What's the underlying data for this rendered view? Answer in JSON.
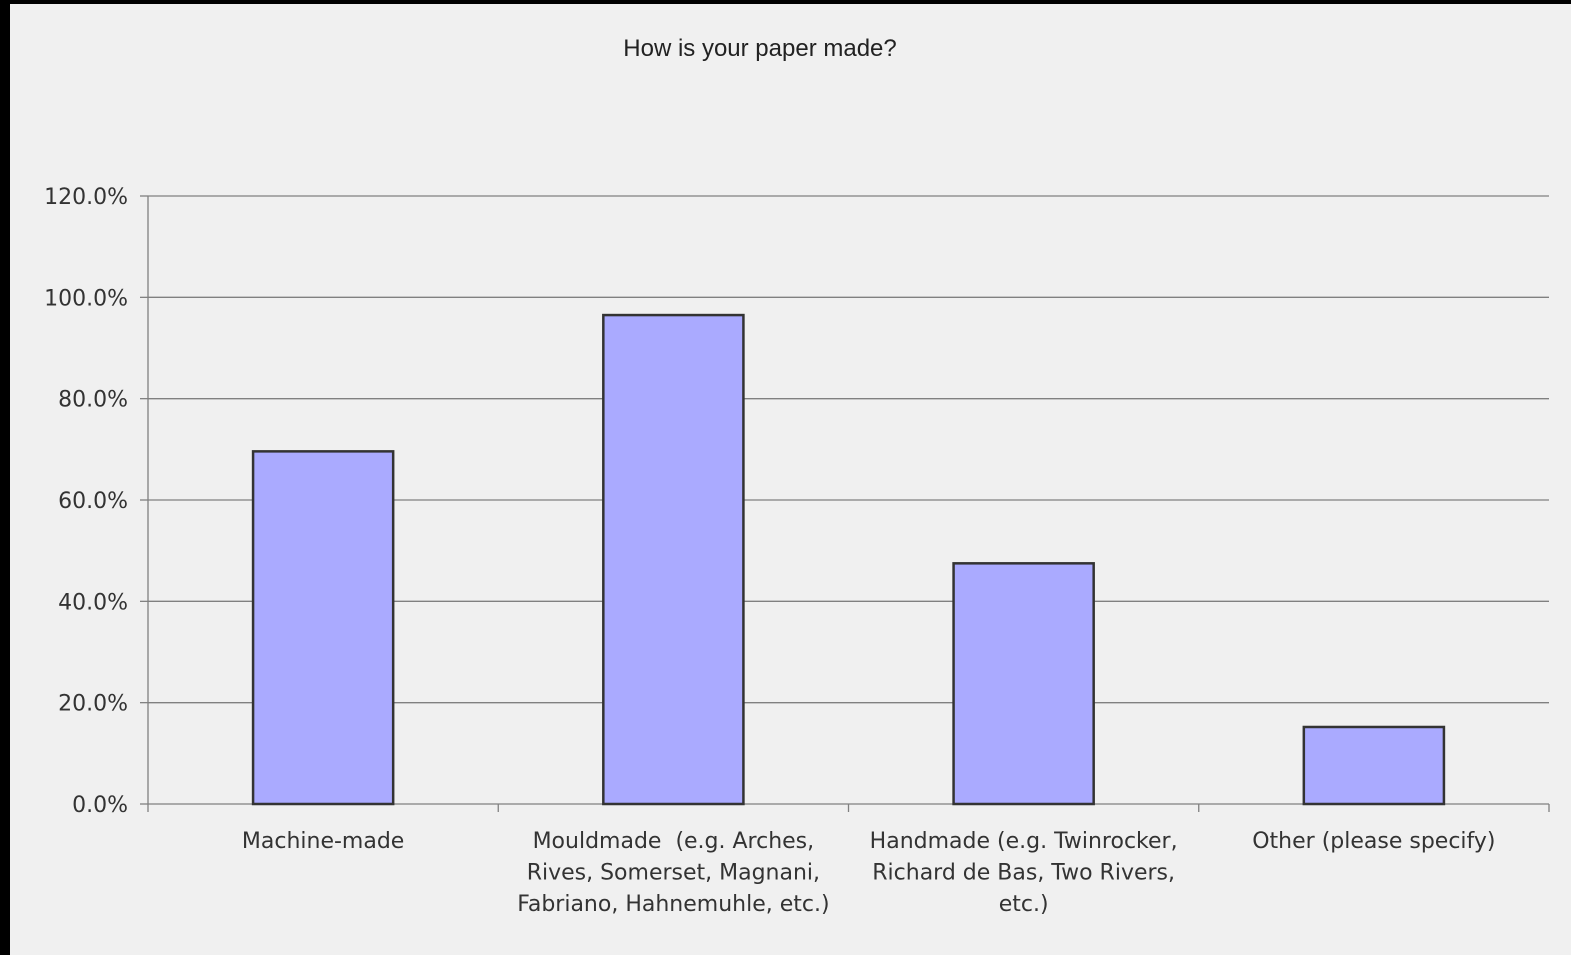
{
  "colors": {
    "background": "#f0f0f0",
    "frame": "#000000",
    "bar_fill": "#aaaaff",
    "bar_stroke": "#333333",
    "grid": "#808080",
    "text": "#333333"
  },
  "chart_data": {
    "type": "bar",
    "title": "How is your paper made?",
    "xlabel": "",
    "ylabel": "",
    "categories": [
      "Machine-made",
      "Mouldmade  (e.g. Arches, Rives, Somerset, Magnani, Fabriano, Hahnemuhle, etc.)",
      "Handmade (e.g. Twinrocker, Richard de Bas, Two Rivers, etc.)",
      "Other (please specify)"
    ],
    "category_label_lines": [
      [
        "Machine-made"
      ],
      [
        "Mouldmade  (e.g. Arches,",
        "Rives, Somerset, Magnani,",
        "Fabriano, Hahnemuhle, etc.)"
      ],
      [
        "Handmade (e.g. Twinrocker,",
        "Richard de Bas, Two Rivers,",
        "etc.)"
      ],
      [
        "Other (please specify)"
      ]
    ],
    "values": [
      69.6,
      96.5,
      47.5,
      15.2
    ],
    "ylim": [
      0,
      120
    ],
    "yticks": [
      0,
      20,
      40,
      60,
      80,
      100,
      120
    ],
    "ytick_labels": [
      "0.0%",
      "20.0%",
      "40.0%",
      "60.0%",
      "80.0%",
      "100.0%",
      "120.0%"
    ],
    "grid": true,
    "legend": "none"
  }
}
